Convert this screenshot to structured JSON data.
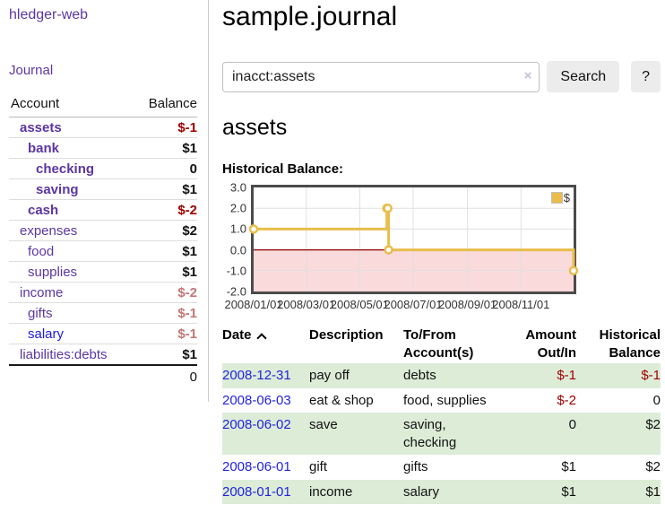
{
  "brand": "hledger-web",
  "sidebar": {
    "journal_link": "Journal",
    "accounts": {
      "headers": {
        "account": "Account",
        "balance": "Balance"
      },
      "rows": [
        {
          "name": "assets",
          "balance": "$-1",
          "indent": 0,
          "bold": true,
          "balance_style": "negative-strong"
        },
        {
          "name": "bank",
          "balance": "$1",
          "indent": 1,
          "bold": true,
          "balance_style": "normal"
        },
        {
          "name": "checking",
          "balance": "0",
          "indent": 2,
          "bold": true,
          "balance_style": "normal"
        },
        {
          "name": "saving",
          "balance": "$1",
          "indent": 2,
          "bold": true,
          "balance_style": "normal"
        },
        {
          "name": "cash",
          "balance": "$-2",
          "indent": 1,
          "bold": true,
          "balance_style": "negative-strong"
        },
        {
          "name": "expenses",
          "balance": "$2",
          "indent": 0,
          "bold": false,
          "balance_style": "normal"
        },
        {
          "name": "food",
          "balance": "$1",
          "indent": 1,
          "bold": false,
          "balance_style": "normal"
        },
        {
          "name": "supplies",
          "balance": "$1",
          "indent": 1,
          "bold": false,
          "balance_style": "normal"
        },
        {
          "name": "income",
          "balance": "$-2",
          "indent": 0,
          "bold": false,
          "balance_style": "negative-soft"
        },
        {
          "name": "gifts",
          "balance": "$-1",
          "indent": 1,
          "bold": false,
          "balance_style": "negative-soft"
        },
        {
          "name": "salary",
          "balance": "$-1",
          "indent": 1,
          "bold": false,
          "balance_style": "negative-soft",
          "link_color": "blue"
        },
        {
          "name": "liabilities:debts",
          "balance": "$1",
          "indent": 0,
          "bold": false,
          "balance_style": "normal"
        }
      ],
      "total": "0"
    }
  },
  "main": {
    "title": "sample.journal",
    "search": {
      "value": "inacct:assets",
      "clear_glyph": "×",
      "search_button": "Search",
      "help_button": "?"
    },
    "heading": "assets",
    "chart_label": "Historical Balance:"
  },
  "chart_data": {
    "type": "line",
    "title": "Historical Balance",
    "step": true,
    "x_start": "2008-01-01",
    "x_end": "2008-12-31",
    "series": [
      {
        "name": "$",
        "color": "#e9bd4b",
        "points": [
          [
            "2008-01-01",
            1
          ],
          [
            "2008-06-01",
            2
          ],
          [
            "2008-06-02",
            2
          ],
          [
            "2008-06-03",
            0
          ],
          [
            "2008-12-31",
            -1
          ]
        ]
      }
    ],
    "ylim": [
      -2,
      3
    ],
    "yticks": [
      3,
      2,
      1,
      0,
      -1,
      -2
    ],
    "ytick_labels": [
      "3.0",
      "2.0",
      "1.0",
      "0.0",
      "-1.0",
      "-2.0"
    ],
    "xtick_labels": [
      "2008/01/01",
      "2008/03/01",
      "2008/05/01",
      "2008/07/01",
      "2008/09/01",
      "2008/11/01"
    ],
    "legend": {
      "label": "$",
      "position": "top-right"
    },
    "grid": true,
    "grid_color": "#e0e0e0",
    "negative_fill": "#fadada",
    "zero_line_color": "#8b0000"
  },
  "register": {
    "headers": {
      "date": "Date",
      "description": "Description",
      "accounts": "To/From Account(s)",
      "amount": "Amount Out/In",
      "balance": "Historical Balance"
    },
    "rows": [
      {
        "date": "2008-12-31",
        "description": "pay off",
        "accounts": "debts",
        "amount": "$-1",
        "balance": "$-1",
        "shaded": true
      },
      {
        "date": "2008-06-03",
        "description": "eat & shop",
        "accounts": "food, supplies",
        "amount": "$-2",
        "balance": "0",
        "shaded": false
      },
      {
        "date": "2008-06-02",
        "description": "save",
        "accounts": "saving, checking",
        "amount": "0",
        "balance": "$2",
        "shaded": true
      },
      {
        "date": "2008-06-01",
        "description": "gift",
        "accounts": "gifts",
        "amount": "$1",
        "balance": "$2",
        "shaded": false
      },
      {
        "date": "2008-01-01",
        "description": "income",
        "accounts": "salary",
        "amount": "$1",
        "balance": "$1",
        "shaded": true
      }
    ]
  }
}
